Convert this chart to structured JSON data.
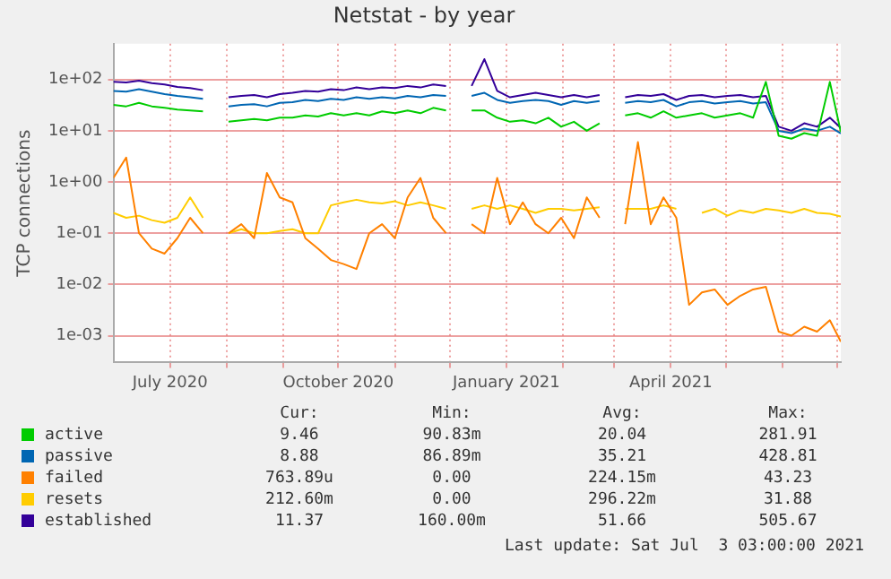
{
  "chart_data": {
    "type": "line",
    "title": "Netstat - by year",
    "ylabel": "TCP connections",
    "log": "y",
    "grid": true,
    "legend": "bottom",
    "marker": "none",
    "line_style": "solid",
    "x": [
      "2020-05-31",
      "2020-06-07",
      "2020-06-14",
      "2020-06-21",
      "2020-06-28",
      "2020-07-05",
      "2020-07-12",
      "2020-07-19",
      "2020-07-26",
      "2020-08-02",
      "2020-08-09",
      "2020-08-16",
      "2020-08-23",
      "2020-08-30",
      "2020-09-06",
      "2020-09-13",
      "2020-09-20",
      "2020-09-27",
      "2020-10-04",
      "2020-10-11",
      "2020-10-18",
      "2020-10-25",
      "2020-11-01",
      "2020-11-08",
      "2020-11-15",
      "2020-11-22",
      "2020-11-29",
      "2020-12-06",
      "2020-12-13",
      "2020-12-20",
      "2020-12-27",
      "2021-01-03",
      "2021-01-10",
      "2021-01-17",
      "2021-01-24",
      "2021-01-31",
      "2021-02-07",
      "2021-02-14",
      "2021-02-21",
      "2021-02-28",
      "2021-03-07",
      "2021-03-14",
      "2021-03-21",
      "2021-03-28",
      "2021-04-04",
      "2021-04-11",
      "2021-04-18",
      "2021-04-25",
      "2021-05-02",
      "2021-05-09",
      "2021-05-16",
      "2021-05-23",
      "2021-05-30",
      "2021-06-06",
      "2021-06-13",
      "2021-06-20",
      "2021-06-27",
      "2021-07-03"
    ],
    "xlim": [
      "2020-05-31",
      "2021-07-03"
    ],
    "xticks": [
      {
        "value": "2020-07-01",
        "label": "July 2020"
      },
      {
        "value": "2020-08-01",
        "label": null
      },
      {
        "value": "2020-09-01",
        "label": null
      },
      {
        "value": "2020-10-01",
        "label": "October 2020"
      },
      {
        "value": "2020-11-01",
        "label": null
      },
      {
        "value": "2020-12-01",
        "label": null
      },
      {
        "value": "2021-01-01",
        "label": "January 2021"
      },
      {
        "value": "2021-02-01",
        "label": null
      },
      {
        "value": "2021-03-01",
        "label": null
      },
      {
        "value": "2021-04-01",
        "label": "April 2021"
      },
      {
        "value": "2021-05-01",
        "label": null
      },
      {
        "value": "2021-06-01",
        "label": null
      },
      {
        "value": "2021-07-01",
        "label": null
      }
    ],
    "ylim": [
      0.0003,
      500
    ],
    "yticks": [
      {
        "value": 0.001,
        "label": "1e-03"
      },
      {
        "value": 0.01,
        "label": "1e-02"
      },
      {
        "value": 0.1,
        "label": "1e-01"
      },
      {
        "value": 1,
        "label": "1e+00"
      },
      {
        "value": 10,
        "label": "1e+01"
      },
      {
        "value": 100,
        "label": "1e+02"
      }
    ],
    "series": [
      {
        "name": "active",
        "color": "#00cc00",
        "values": [
          32,
          30,
          35,
          30,
          28,
          26,
          25,
          24,
          null,
          15,
          16,
          17,
          16,
          18,
          18,
          20,
          19,
          22,
          20,
          22,
          20,
          24,
          22,
          25,
          22,
          28,
          25,
          null,
          25,
          25,
          18,
          15,
          16,
          14,
          18,
          12,
          15,
          10,
          14,
          null,
          20,
          22,
          18,
          24,
          18,
          20,
          22,
          18,
          20,
          22,
          18,
          90,
          8,
          7,
          9,
          8,
          90,
          9.46
        ]
      },
      {
        "name": "passive",
        "color": "#0066b3",
        "values": [
          60,
          58,
          65,
          58,
          52,
          48,
          45,
          42,
          null,
          30,
          32,
          33,
          30,
          35,
          36,
          40,
          38,
          42,
          40,
          45,
          42,
          45,
          43,
          48,
          45,
          50,
          48,
          null,
          48,
          55,
          40,
          35,
          38,
          40,
          38,
          32,
          38,
          35,
          38,
          null,
          35,
          38,
          36,
          40,
          30,
          36,
          38,
          34,
          36,
          38,
          34,
          36,
          10,
          9,
          11,
          10,
          12,
          8.88
        ]
      },
      {
        "name": "failed",
        "color": "#ff8000",
        "values": [
          1.2,
          3,
          0.1,
          0.05,
          0.04,
          0.08,
          0.2,
          0.1,
          null,
          0.1,
          0.15,
          0.08,
          1.5,
          0.5,
          0.4,
          0.08,
          0.05,
          0.03,
          0.025,
          0.02,
          0.1,
          0.15,
          0.08,
          0.5,
          1.2,
          0.2,
          0.1,
          null,
          0.15,
          0.1,
          1.2,
          0.15,
          0.4,
          0.15,
          0.1,
          0.2,
          0.08,
          0.5,
          0.2,
          null,
          0.15,
          6,
          0.15,
          0.5,
          0.2,
          0.004,
          0.007,
          0.008,
          0.004,
          0.006,
          0.008,
          0.009,
          0.0012,
          0.001,
          0.0015,
          0.0012,
          0.002,
          0.00076389
        ]
      },
      {
        "name": "resets",
        "color": "#ffcc00",
        "values": [
          0.25,
          0.2,
          0.22,
          0.18,
          0.16,
          0.2,
          0.5,
          0.2,
          null,
          0.1,
          0.12,
          0.1,
          0.1,
          0.11,
          0.12,
          0.1,
          0.1,
          0.35,
          0.4,
          0.45,
          0.4,
          0.38,
          0.42,
          0.35,
          0.4,
          0.35,
          0.3,
          null,
          0.3,
          0.35,
          0.3,
          0.35,
          0.3,
          0.25,
          0.3,
          0.3,
          0.28,
          0.3,
          0.32,
          null,
          0.3,
          0.3,
          0.3,
          0.35,
          0.3,
          null,
          0.25,
          0.3,
          0.22,
          0.28,
          0.25,
          0.3,
          0.28,
          0.25,
          0.3,
          0.25,
          0.24,
          0.2126
        ]
      },
      {
        "name": "established",
        "color": "#330099",
        "values": [
          90,
          88,
          95,
          85,
          80,
          72,
          68,
          62,
          null,
          45,
          48,
          50,
          45,
          52,
          55,
          60,
          58,
          65,
          62,
          70,
          65,
          70,
          68,
          75,
          70,
          80,
          75,
          null,
          75,
          250,
          60,
          45,
          50,
          55,
          50,
          45,
          50,
          45,
          50,
          null,
          45,
          50,
          48,
          52,
          40,
          48,
          50,
          45,
          48,
          50,
          45,
          48,
          12,
          10,
          14,
          12,
          18,
          11.37
        ]
      }
    ],
    "annotations": [
      "Cur:",
      "Min:",
      "Avg:",
      "Max:",
      "9.46",
      "90.83m",
      "20.04",
      "281.91",
      "8.88",
      "86.89m",
      "35.21",
      "428.81",
      "763.89u",
      "0.00",
      "224.15m",
      "43.23",
      "212.60m",
      "0.00",
      "296.22m",
      "31.88",
      "11.37",
      "160.00m",
      "51.66",
      "505.67",
      "Last update: Sat Jul  3 03:00:00 2021"
    ]
  }
}
